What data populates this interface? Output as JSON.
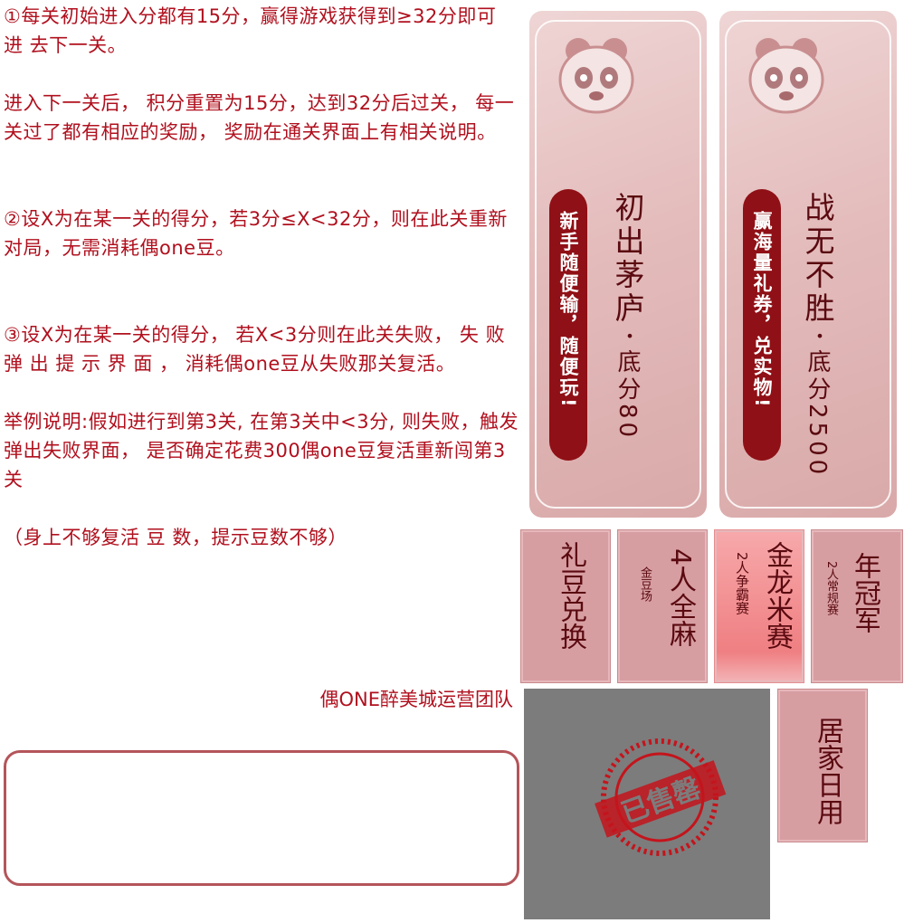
{
  "rules": {
    "p1": "①每关初始进入分都有15分，赢得游戏获得到≥32分即可 进 去下一关。",
    "p2": "进入下一关后， 积分重置为15分，达到32分后过关， 每一关过了都有相应的奖励， 奖励在通关界面上有相关说明。",
    "p3": "②设X为在某一关的得分，若3分≤X<32分，则在此关重新对局，无需消耗偶one豆。",
    "p4": "③设X为在某一关的得分， 若X<3分则在此关失败， 失 败 弹 出 提 示 界 面 ， 消耗偶one豆从失败那关复活。",
    "p5": "举例说明:假如进行到第3关, 在第3关中<3分, 则失败，触发弹出失败界面， 是否确定花费300偶one豆复活重新闯第3关",
    "p6": "（身上不够复活 豆 数，提示豆数不够）"
  },
  "signature": "偶ONE醉美城运营团队",
  "cards": [
    {
      "title": "初出茅庐",
      "dot": "・",
      "base": "底分80",
      "slogan": "新手随便输，随便玩!"
    },
    {
      "title": "战无不胜",
      "dot": "・",
      "base": "底分2500",
      "slogan": "赢海量礼券，兑实物!"
    }
  ],
  "tiles": {
    "exchange": "礼豆兑换",
    "four_title": "4人全麻",
    "four_sub": "金豆场",
    "dragon_title": "金龙米赛",
    "dragon_sub": "2人争霸赛",
    "year_title": "年冠军",
    "year_sub": "2人常规赛",
    "home": "居家日用"
  },
  "stamp": {
    "text": "已售罄"
  },
  "colors": {
    "text_red": "#b0101e",
    "pill": "#8f1016",
    "tile": "#d79ea2",
    "gray": "#7c7c7c"
  }
}
